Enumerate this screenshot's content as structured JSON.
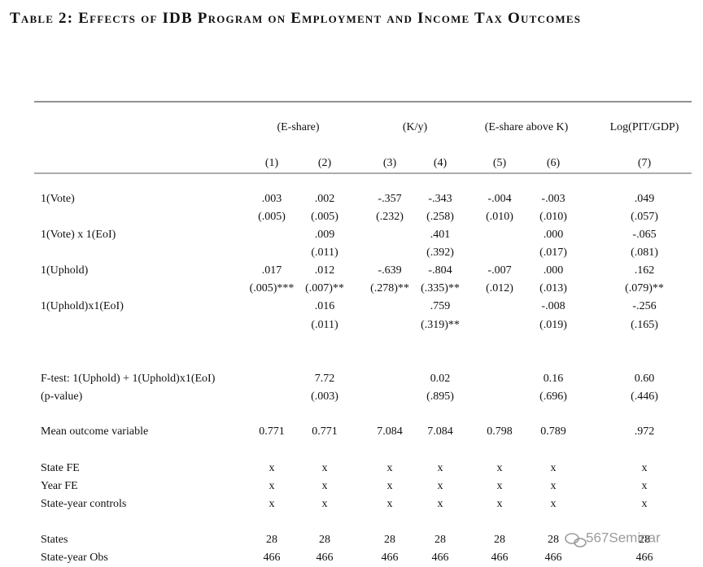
{
  "title": "Table 2: Effects of IDB Program on Employment and Income Tax Outcomes",
  "table": {
    "groups": [
      {
        "label": "(E-share)",
        "columns": [
          0,
          1
        ]
      },
      {
        "label": "(K/y)",
        "columns": [
          2,
          3
        ]
      },
      {
        "label": "(E-share above K)",
        "columns": [
          4,
          5
        ]
      },
      {
        "label": "Log(PIT/GDP)",
        "columns": [
          6
        ]
      }
    ],
    "column_numbers": [
      "(1)",
      "(2)",
      "(3)",
      "(4)",
      "(5)",
      "(6)",
      "(7)"
    ],
    "rows": [
      {
        "label": "1(Vote)",
        "cells": [
          ".003",
          ".002",
          "-.357",
          "-.343",
          "-.004",
          "-.003",
          ".049"
        ]
      },
      {
        "label": null,
        "cells": [
          "(.005)",
          "(.005)",
          "(.232)",
          "(.258)",
          "(.010)",
          "(.010)",
          "(.057)"
        ]
      },
      {
        "label": "1(Vote) x 1(EoI)",
        "cells": [
          null,
          ".009",
          null,
          ".401",
          null,
          ".000",
          "-.065"
        ]
      },
      {
        "label": null,
        "cells": [
          null,
          "(.011)",
          null,
          "(.392)",
          null,
          "(.017)",
          "(.081)"
        ]
      },
      {
        "label": "1(Uphold)",
        "cells": [
          ".017",
          ".012",
          "-.639",
          "-.804",
          "-.007",
          ".000",
          ".162"
        ]
      },
      {
        "label": null,
        "cells": [
          "(.005)***",
          "(.007)**",
          "(.278)**",
          "(.335)**",
          "(.012)",
          "(.013)",
          "(.079)**"
        ]
      },
      {
        "label": "1(Uphold)x1(EoI)",
        "cells": [
          null,
          ".016",
          null,
          ".759",
          null,
          "-.008",
          "-.256"
        ]
      },
      {
        "label": null,
        "cells": [
          null,
          "(.011)",
          null,
          "(.319)**",
          null,
          "(.019)",
          "(.165)"
        ]
      },
      {
        "label": "F-test: 1(Uphold) + 1(Uphold)x1(EoI)",
        "cells": [
          null,
          "7.72",
          null,
          "0.02",
          null,
          "0.16",
          "0.60"
        ]
      },
      {
        "label": "(p-value)",
        "cells": [
          null,
          "(.003)",
          null,
          "(.895)",
          null,
          "(.696)",
          "(.446)"
        ]
      },
      {
        "label": "Mean outcome variable",
        "cells": [
          "0.771",
          "0.771",
          "7.084",
          "7.084",
          "0.798",
          "0.789",
          ".972"
        ]
      },
      {
        "label": "State FE",
        "cells": [
          "x",
          "x",
          "x",
          "x",
          "x",
          "x",
          "x"
        ]
      },
      {
        "label": "Year FE",
        "cells": [
          "x",
          "x",
          "x",
          "x",
          "x",
          "x",
          "x"
        ]
      },
      {
        "label": "State-year controls",
        "cells": [
          "x",
          "x",
          "x",
          "x",
          "x",
          "x",
          "x"
        ]
      },
      {
        "label": "States",
        "cells": [
          "28",
          "28",
          "28",
          "28",
          "28",
          "28",
          "28"
        ]
      },
      {
        "label": "State-year Obs",
        "cells": [
          "466",
          "466",
          "466",
          "466",
          "466",
          "466",
          "466"
        ]
      }
    ]
  },
  "watermark": "567Seminar"
}
